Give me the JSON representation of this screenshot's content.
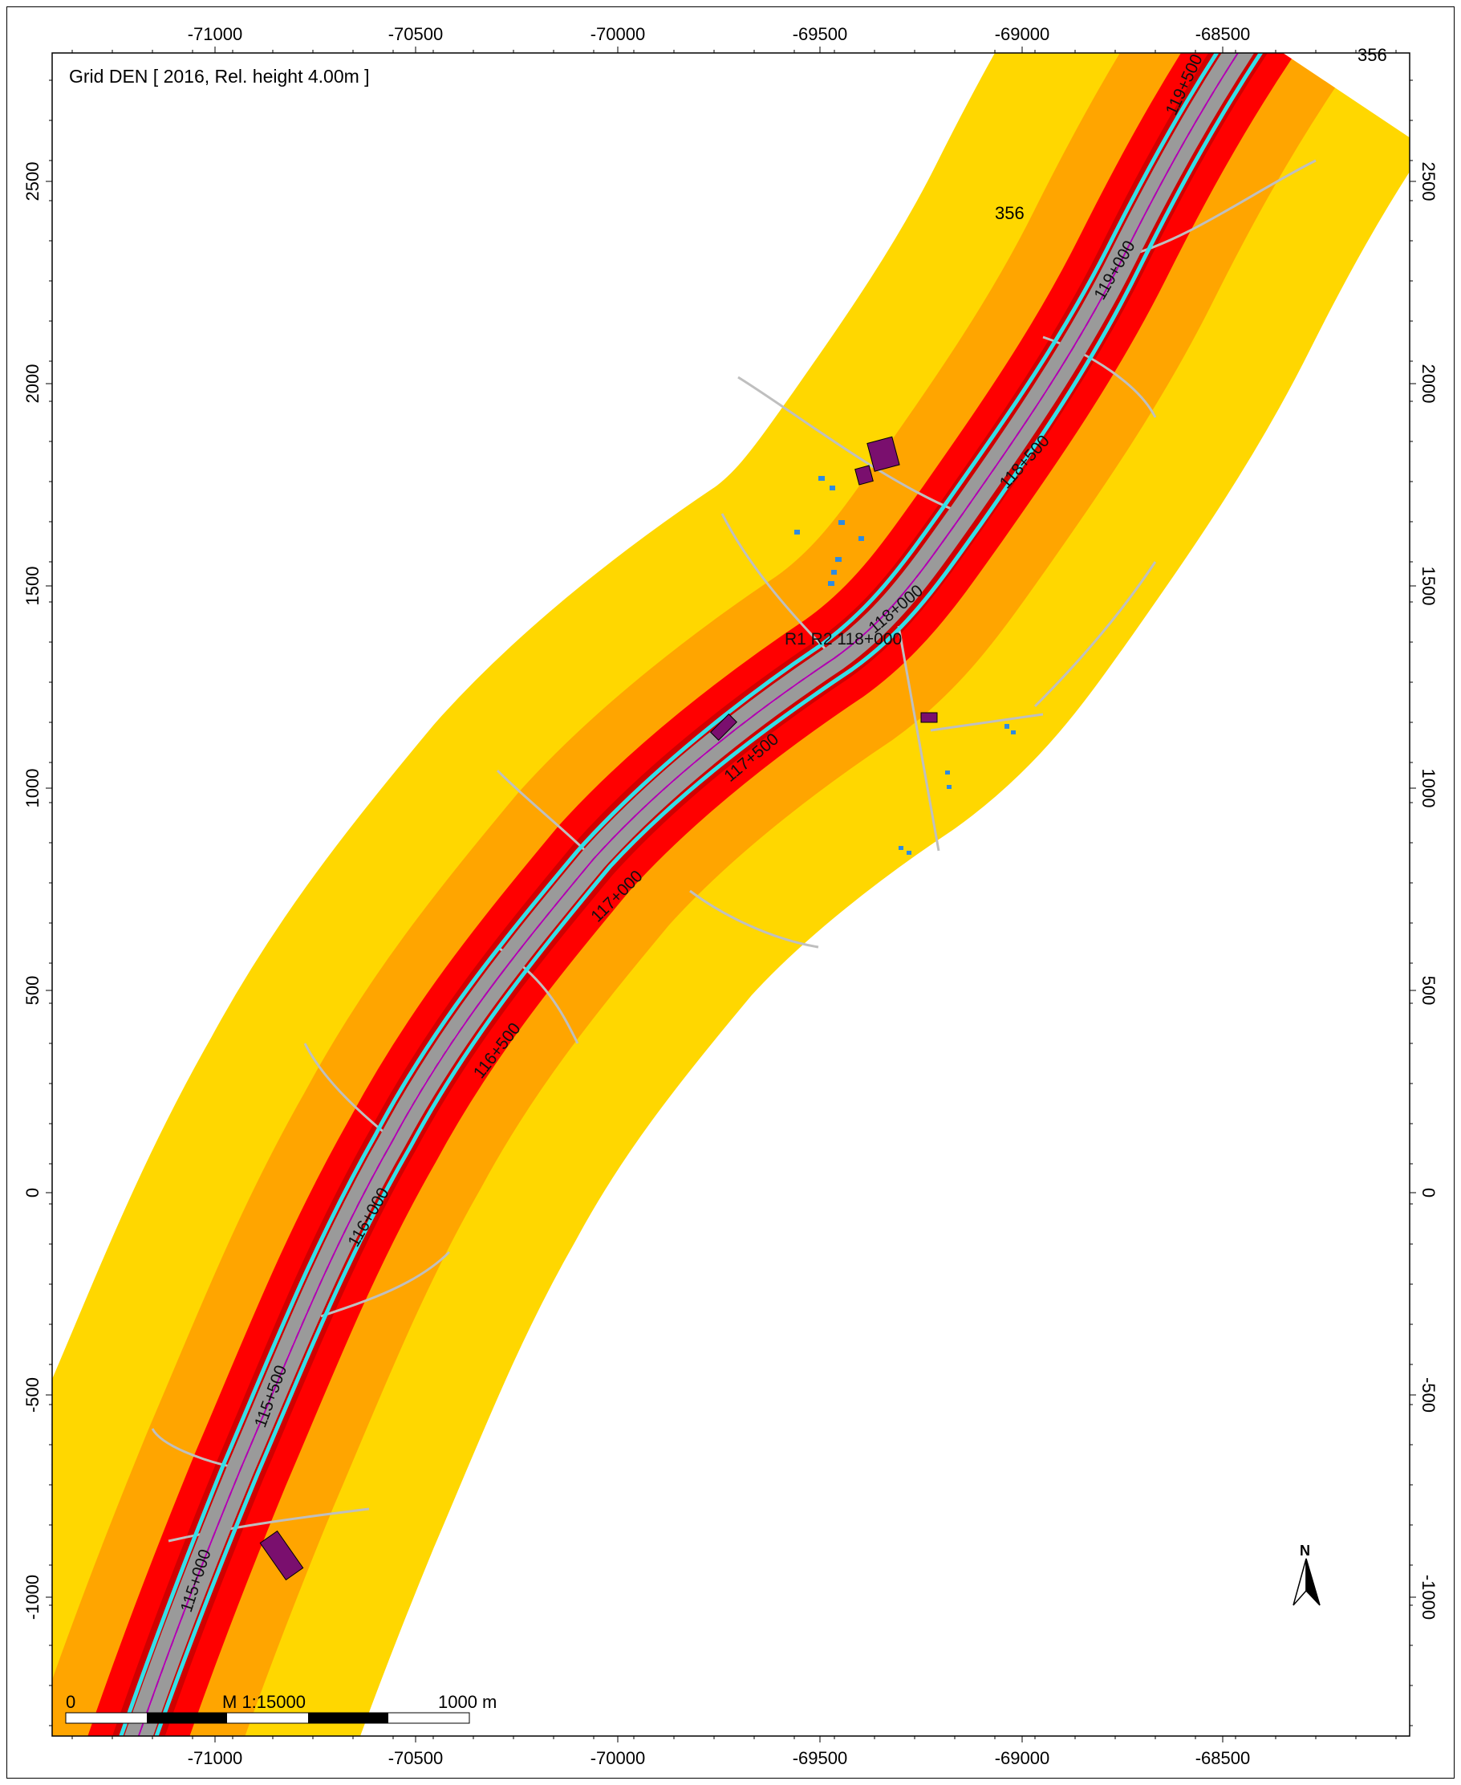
{
  "title": "Grid DEN  [ 2016, Rel. height  4.00m ]",
  "axes": {
    "x_ticks": [
      "-71000",
      "-70500",
      "-70000",
      "-69500",
      "-69000",
      "-68500"
    ],
    "y_ticks": [
      "2500",
      "2000",
      "1500",
      "1000",
      "500",
      "0",
      "-500",
      "-1000"
    ]
  },
  "route_labels": [
    "115+000",
    "115+500",
    "116+000",
    "116+500",
    "117+000",
    "117+500",
    "118+000",
    "118+500",
    "119+000",
    "119+500"
  ],
  "road_labels": [
    "356",
    "356"
  ],
  "receiver_label": "R1 R2 118+000",
  "scale_bar": {
    "start": "0",
    "scale": "M 1:15000",
    "end": "1000 m"
  },
  "north_arrow": "N",
  "colors": {
    "zone_outer": "#FFD700",
    "zone_middle": "#FFA500",
    "zone_inner": "#FF0000",
    "zone_core": "#D00000",
    "highway": "#9A9A9A",
    "noise_barrier": "#33E0E8",
    "building": "#7A0F6E",
    "roads": "#BFBFBF",
    "small_buildings": "#2E8BE0"
  }
}
